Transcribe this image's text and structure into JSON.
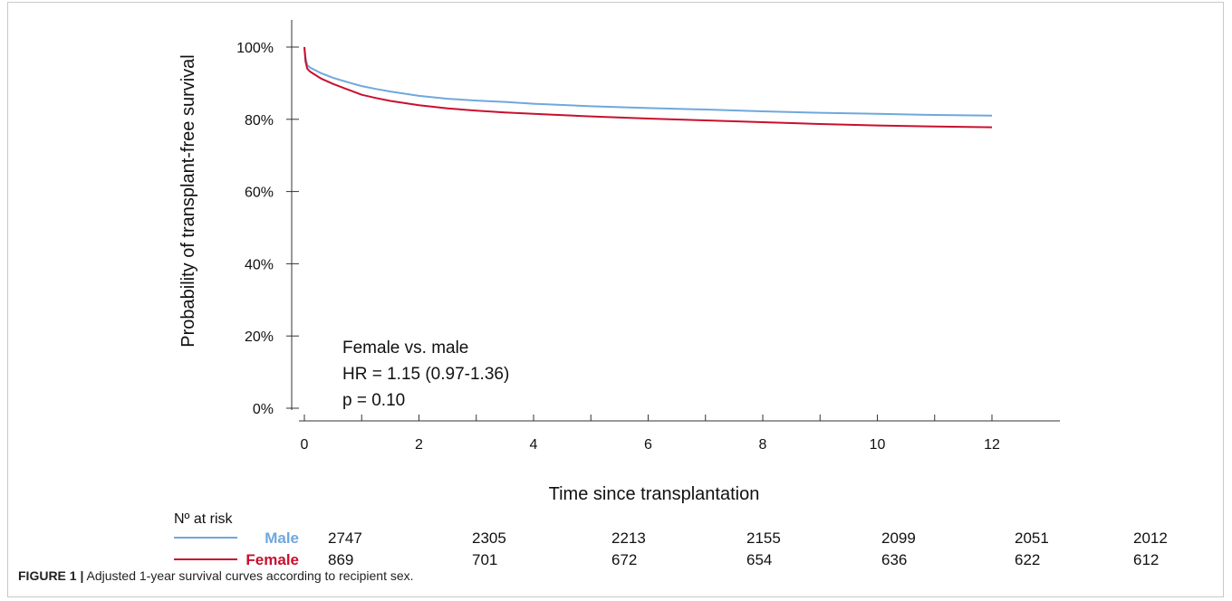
{
  "chart_data": {
    "type": "line",
    "title": "",
    "xlabel": "Time since transplantation",
    "ylabel": "Probability of transplant-free survival",
    "xlim": [
      0,
      12
    ],
    "ylim": [
      0,
      100
    ],
    "x_ticks": [
      0,
      2,
      4,
      6,
      8,
      10,
      12
    ],
    "x_tick_labels": [
      "0",
      "2",
      "4",
      "6",
      "8",
      "10",
      "12"
    ],
    "y_ticks": [
      0,
      20,
      40,
      60,
      80,
      100
    ],
    "y_tick_labels": [
      "0%",
      "20%",
      "40%",
      "60%",
      "80%",
      "100%"
    ],
    "grid": false,
    "series": [
      {
        "name": "Male",
        "color": "#6fa8dc",
        "x": [
          0,
          0.02,
          0.05,
          0.1,
          0.2,
          0.3,
          0.5,
          0.75,
          1.0,
          1.25,
          1.5,
          2.0,
          2.5,
          3.0,
          3.5,
          4.0,
          5.0,
          6.0,
          7.0,
          8.0,
          9.0,
          10.0,
          11.0,
          12.0
        ],
        "y": [
          100,
          97,
          95,
          94.3,
          93.5,
          92.7,
          91.5,
          90.3,
          89.2,
          88.4,
          87.7,
          86.5,
          85.7,
          85.2,
          84.8,
          84.3,
          83.6,
          83.1,
          82.7,
          82.2,
          81.8,
          81.5,
          81.2,
          81.0
        ]
      },
      {
        "name": "Female",
        "color": "#c8102e",
        "x": [
          0,
          0.02,
          0.05,
          0.1,
          0.2,
          0.3,
          0.5,
          0.75,
          1.0,
          1.25,
          1.5,
          2.0,
          2.5,
          3.0,
          3.5,
          4.0,
          5.0,
          6.0,
          7.0,
          8.0,
          9.0,
          10.0,
          11.0,
          12.0
        ],
        "y": [
          100,
          96,
          94,
          93.2,
          92.2,
          91.2,
          89.8,
          88.3,
          86.8,
          85.9,
          85.1,
          83.9,
          83.0,
          82.4,
          81.9,
          81.5,
          80.8,
          80.2,
          79.7,
          79.2,
          78.7,
          78.3,
          78.0,
          77.8
        ]
      }
    ],
    "annotation": [
      "Female vs. male",
      "HR = 1.15 (0.97-1.36)",
      "p = 0.10"
    ],
    "risk_table": {
      "title": "Nº at risk",
      "rows": [
        {
          "name": "Male",
          "color": "#6fa8dc",
          "values": [
            "2747",
            "2305",
            "2213",
            "2155",
            "2099",
            "2051",
            "2012"
          ]
        },
        {
          "name": "Female",
          "color": "#c8102e",
          "values": [
            "869",
            "701",
            "672",
            "654",
            "636",
            "622",
            "612"
          ]
        }
      ]
    }
  },
  "caption": {
    "label": "FIGURE 1 |",
    "text": " Adjusted 1-year survival curves according to recipient sex."
  }
}
